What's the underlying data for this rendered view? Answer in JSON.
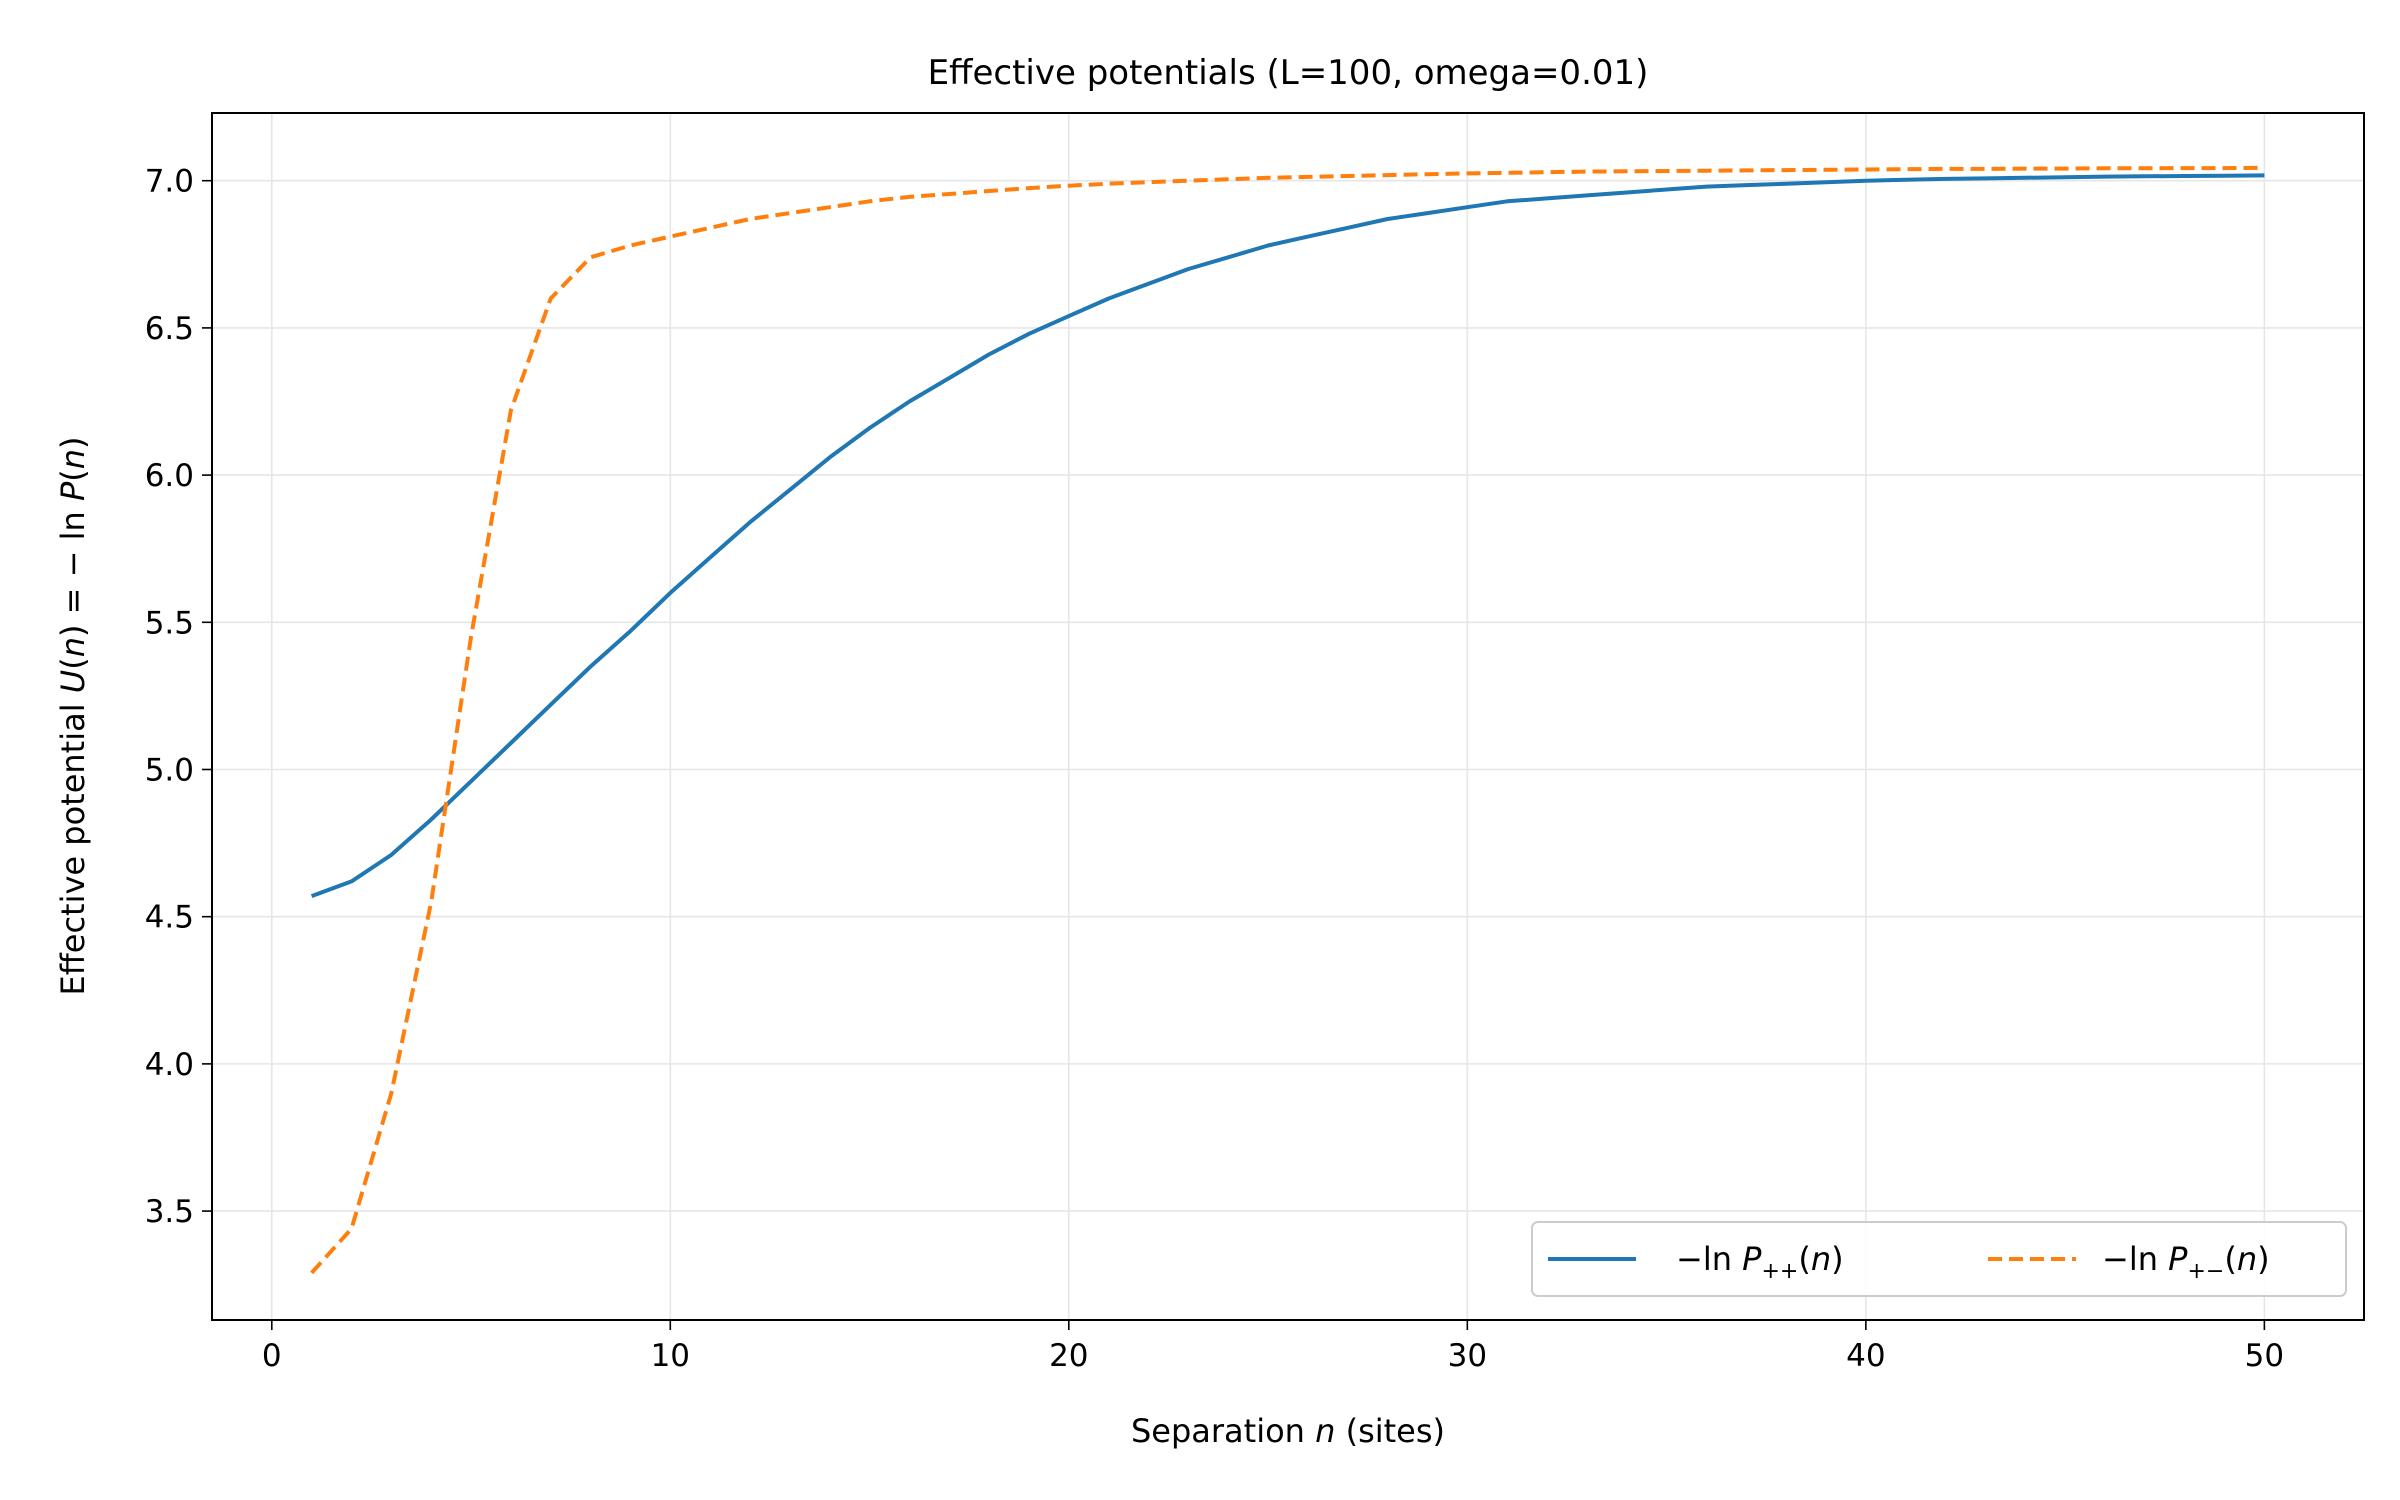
{
  "chart_data": {
    "type": "line",
    "title": "Effective potentials (L=100, omega=0.01)",
    "xlabel": {
      "text": "Separation ",
      "italic": "n",
      "tail": " (sites)"
    },
    "ylabel": {
      "pre": "Effective potential ",
      "U": "U",
      "open": "(",
      "n": "n",
      "mid": ") = − ln ",
      "P": "P",
      "open2": "(",
      "n2": "n",
      "close": ")"
    },
    "xlim": [
      -1.5,
      52.5
    ],
    "ylim": [
      3.13,
      7.23
    ],
    "xticks": [
      0,
      10,
      20,
      30,
      40,
      50
    ],
    "yticks": [
      3.5,
      4.0,
      4.5,
      5.0,
      5.5,
      6.0,
      6.5,
      7.0
    ],
    "xtick_labels": [
      "0",
      "10",
      "20",
      "30",
      "40",
      "50"
    ],
    "ytick_labels": [
      "3.5",
      "4.0",
      "4.5",
      "5.0",
      "5.5",
      "6.0",
      "6.5",
      "7.0"
    ],
    "grid": true,
    "legend_position": "lower-right",
    "series": [
      {
        "name": "−ln P++(n)",
        "legend": {
          "prefix": "−ln ",
          "base": "P",
          "sub": "++",
          "suffix_open": "(",
          "var": "n",
          "suffix_close": ")"
        },
        "color": "#1f77b4",
        "style": "solid",
        "x": [
          1,
          2,
          3,
          4,
          5,
          6,
          7,
          8,
          9,
          10,
          11,
          12,
          13,
          14,
          15,
          16,
          17,
          18,
          19,
          20,
          21,
          22,
          23,
          24,
          25,
          26,
          27,
          28,
          29,
          30,
          31,
          32,
          33,
          34,
          35,
          36,
          37,
          38,
          39,
          40,
          41,
          42,
          43,
          44,
          45,
          46,
          47,
          48,
          49,
          50
        ],
        "y": [
          4.57,
          4.62,
          4.71,
          4.83,
          4.96,
          5.09,
          5.22,
          5.35,
          5.47,
          5.6,
          5.72,
          5.84,
          5.95,
          6.06,
          6.16,
          6.25,
          6.33,
          6.41,
          6.48,
          6.54,
          6.6,
          6.65,
          6.7,
          6.74,
          6.78,
          6.81,
          6.84,
          6.87,
          6.89,
          6.91,
          6.93,
          6.94,
          6.95,
          6.96,
          6.97,
          6.98,
          6.985,
          6.99,
          6.995,
          7.0,
          7.003,
          7.006,
          7.008,
          7.01,
          7.012,
          7.014,
          7.015,
          7.016,
          7.017,
          7.018
        ]
      },
      {
        "name": "−ln P+−(n)",
        "legend": {
          "prefix": "−ln ",
          "base": "P",
          "sub": "+−",
          "suffix_open": "(",
          "var": "n",
          "suffix_close": ")"
        },
        "color": "#ff7f0e",
        "style": "dashed",
        "x": [
          1,
          2,
          3,
          4,
          5,
          6,
          7,
          8,
          9,
          10,
          11,
          12,
          13,
          14,
          15,
          16,
          17,
          18,
          19,
          20,
          21,
          22,
          23,
          24,
          25,
          26,
          27,
          28,
          29,
          30,
          31,
          32,
          33,
          34,
          35,
          36,
          37,
          38,
          39,
          40,
          41,
          42,
          43,
          44,
          45,
          46,
          47,
          48,
          49,
          50
        ],
        "y": [
          3.29,
          3.44,
          3.9,
          4.55,
          5.45,
          6.22,
          6.6,
          6.74,
          6.78,
          6.81,
          6.84,
          6.87,
          6.89,
          6.91,
          6.93,
          6.945,
          6.955,
          6.965,
          6.975,
          6.983,
          6.99,
          6.995,
          7.0,
          7.005,
          7.01,
          7.013,
          7.016,
          7.019,
          7.022,
          7.025,
          7.027,
          7.029,
          7.031,
          7.032,
          7.033,
          7.034,
          7.035,
          7.036,
          7.037,
          7.038,
          7.039,
          7.04,
          7.04,
          7.041,
          7.041,
          7.042,
          7.042,
          7.043,
          7.043,
          7.044
        ]
      }
    ]
  }
}
